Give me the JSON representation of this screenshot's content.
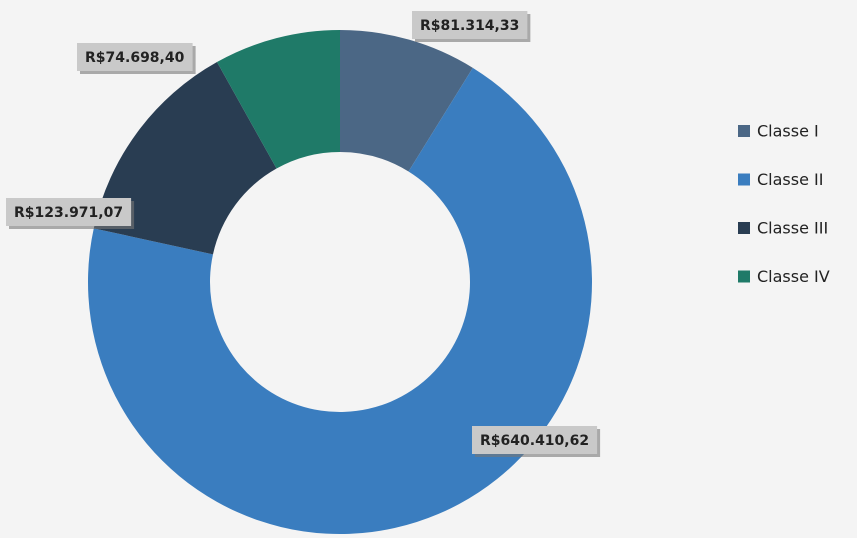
{
  "chart_data": {
    "type": "donut",
    "categories": [
      "Classe I",
      "Classe II",
      "Classe III",
      "Classe IV"
    ],
    "values": [
      81314.33,
      640410.62,
      123971.07,
      74698.4
    ],
    "value_labels": [
      "R$81.314,33",
      "R$640.410,62",
      "R$123.971,07",
      "R$74.698,40"
    ],
    "colors": [
      "#4b6785",
      "#3a7dbf",
      "#293d52",
      "#1f7a68"
    ],
    "legend": "right"
  }
}
